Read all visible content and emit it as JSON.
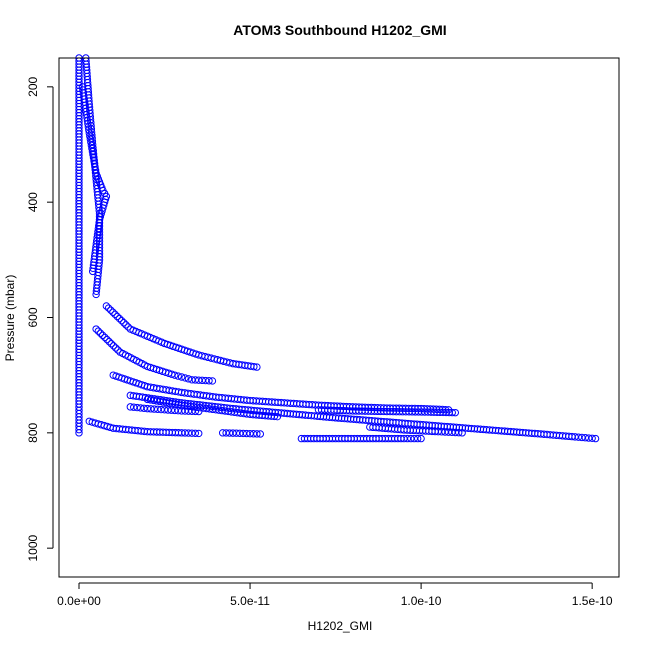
{
  "chart_data": {
    "type": "scatter",
    "title": "ATOM3 Southbound H1202_GMI",
    "xlabel": "H1202_GMI",
    "ylabel": "Pressure (mbar)",
    "xlim": [
      0,
      1.52e-10
    ],
    "ylim": [
      1050,
      150
    ],
    "y_reversed": true,
    "x_ticks": [
      {
        "value": 0,
        "label": "0.0e+00"
      },
      {
        "value": 5e-11,
        "label": "5.0e-11"
      },
      {
        "value": 1e-10,
        "label": "1.0e-10"
      },
      {
        "value": 1.5e-10,
        "label": "1.5e-10"
      }
    ],
    "y_ticks": [
      {
        "value": 200,
        "label": "200"
      },
      {
        "value": 400,
        "label": "400"
      },
      {
        "value": 600,
        "label": "600"
      },
      {
        "value": 800,
        "label": "800"
      },
      {
        "value": 1000,
        "label": "1000"
      }
    ],
    "marker": "open-circle",
    "color": "#0000ff",
    "series": [
      {
        "x": [
          0,
          0,
          0,
          0,
          0,
          0,
          0,
          0
        ],
        "y": [
          150,
          250,
          350,
          450,
          550,
          650,
          750,
          800
        ]
      },
      {
        "x": [
          2e-12,
          3e-12,
          4e-12,
          5e-12,
          6e-12,
          6e-12,
          5e-12
        ],
        "y": [
          150,
          230,
          300,
          360,
          420,
          500,
          560
        ]
      },
      {
        "x": [
          1e-12,
          3e-12,
          5e-12,
          7e-12,
          8e-12,
          6e-12,
          4e-12
        ],
        "y": [
          200,
          280,
          350,
          380,
          390,
          430,
          520
        ]
      },
      {
        "x": [
          8e-12,
          1.5e-11,
          2.5e-11,
          3.5e-11,
          4.5e-11,
          5.2e-11
        ],
        "y": [
          580,
          620,
          645,
          665,
          680,
          686
        ]
      },
      {
        "x": [
          5e-12,
          1.2e-11,
          2e-11,
          2.8e-11,
          3.3e-11,
          3.9e-11
        ],
        "y": [
          620,
          660,
          685,
          700,
          708,
          710
        ]
      },
      {
        "x": [
          1e-11,
          2e-11,
          3e-11,
          4e-11,
          5e-11,
          6e-11,
          7e-11,
          8e-11,
          9e-11,
          1e-10,
          1.08e-10
        ],
        "y": [
          700,
          720,
          730,
          738,
          744,
          748,
          752,
          755,
          757,
          758,
          760
        ]
      },
      {
        "x": [
          1.5e-11,
          3e-11,
          4.5e-11,
          6e-11,
          7.5e-11,
          9e-11,
          1.05e-10,
          1.2e-10,
          1.35e-10,
          1.45e-10,
          1.51e-10
        ],
        "y": [
          735,
          748,
          758,
          766,
          774,
          781,
          788,
          795,
          802,
          807,
          810
        ]
      },
      {
        "x": [
          3e-12,
          1e-11,
          2e-11,
          3e-11,
          3.5e-11
        ],
        "y": [
          780,
          792,
          798,
          800,
          801
        ]
      },
      {
        "x": [
          4.2e-11,
          4.8e-11,
          5.3e-11
        ],
        "y": [
          800,
          801,
          802
        ]
      },
      {
        "x": [
          6.5e-11,
          7.5e-11,
          8.5e-11,
          9.5e-11,
          1e-10
        ],
        "y": [
          810,
          810,
          810,
          810,
          810
        ]
      },
      {
        "x": [
          8.5e-11,
          9.5e-11,
          1.05e-10,
          1.12e-10
        ],
        "y": [
          790,
          795,
          798,
          800
        ]
      },
      {
        "x": [
          2e-11,
          3e-11,
          4e-11,
          5e-11,
          5.8e-11
        ],
        "y": [
          742,
          752,
          760,
          768,
          772
        ]
      },
      {
        "x": [
          7e-11,
          8e-11,
          9e-11,
          1.02e-10,
          1.1e-10
        ],
        "y": [
          760,
          762,
          763,
          764,
          765
        ]
      },
      {
        "x": [
          1.5e-11,
          2e-11,
          2.5e-11,
          3e-11,
          3.5e-11
        ],
        "y": [
          755,
          758,
          760,
          762,
          763
        ]
      }
    ]
  }
}
